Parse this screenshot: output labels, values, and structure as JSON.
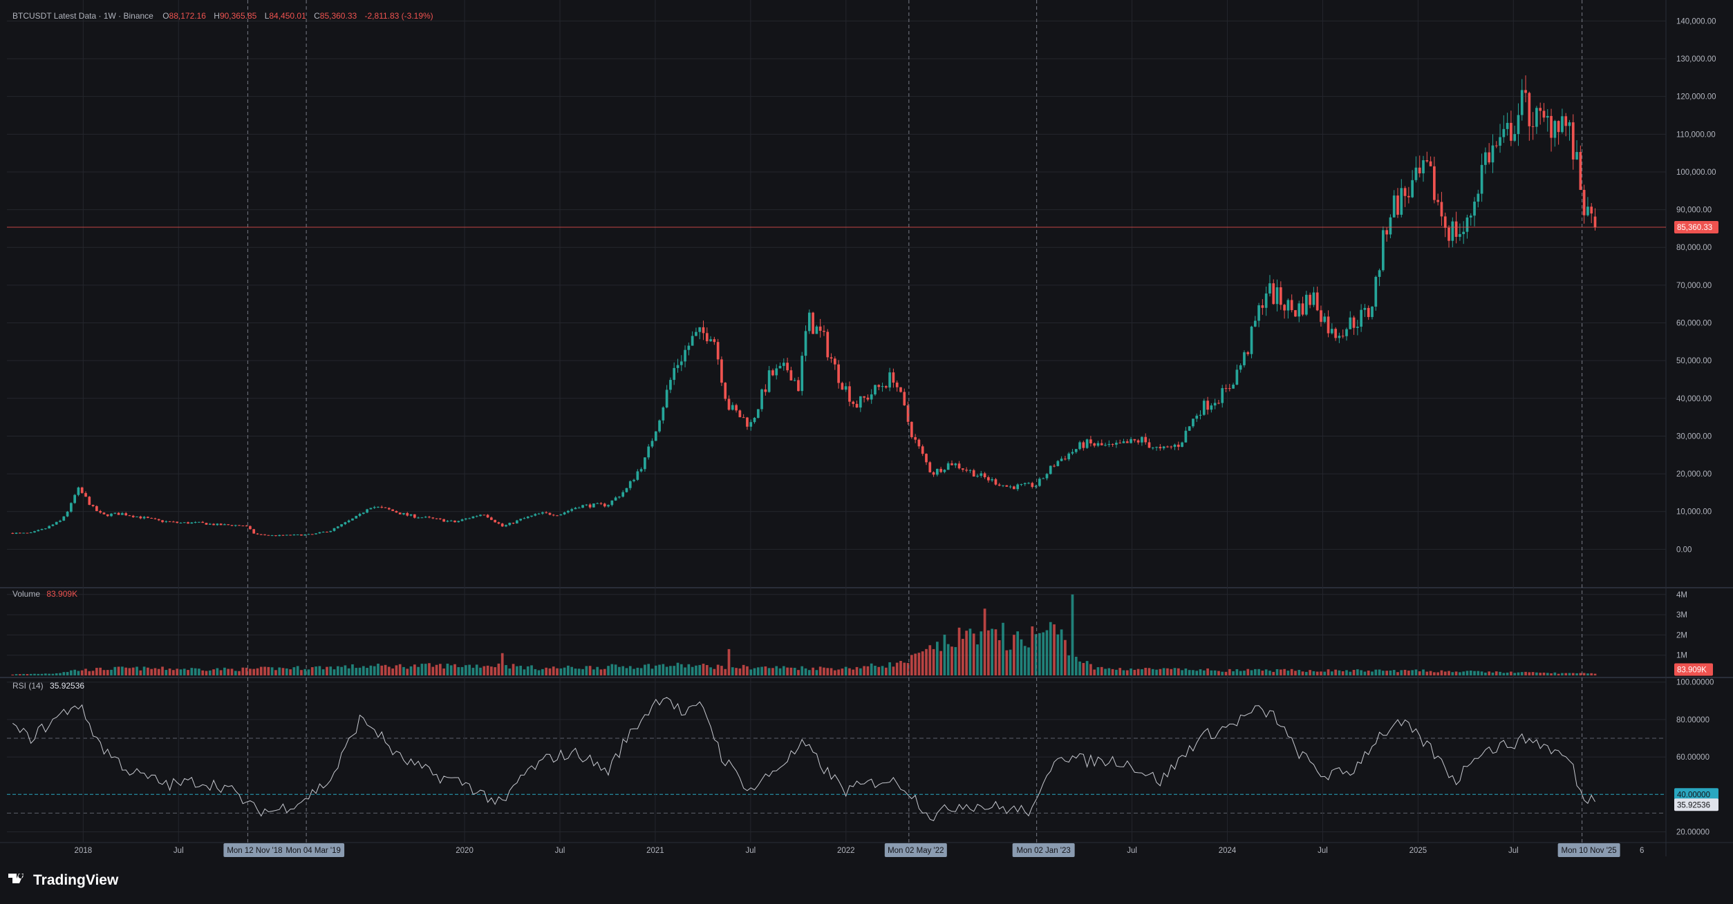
{
  "header": {
    "title": "BTCUSDT Latest Data · 1W · Binance",
    "o_label": "O",
    "o": "88,172.16",
    "h_label": "H",
    "h": "90,365.85",
    "l_label": "L",
    "l": "84,450.01",
    "c_label": "C",
    "c": "85,360.33",
    "change": "-2,811.83 (-3.19%)"
  },
  "volume_legend": {
    "label": "Volume",
    "value": "83.909K"
  },
  "rsi_legend": {
    "label": "RSI (14)",
    "value": "35.92536"
  },
  "brand": {
    "name": "TradingView",
    "icon": "tradingview-logo-icon"
  },
  "colors": {
    "background": "#131418",
    "grid": "#24262d",
    "up": "#26a69a",
    "down": "#ef5350",
    "axis_text": "#b2b5be",
    "rsi_line": "#c7c9d0",
    "rsi_mark": "#2aa7c0",
    "tag_bg": "#8a9bb0"
  },
  "x_axis": {
    "ticks": [
      {
        "t": 2018.0,
        "label": "2018"
      },
      {
        "t": 2018.5,
        "label": "Jul"
      },
      {
        "t": 2020.0,
        "label": "2020"
      },
      {
        "t": 2020.5,
        "label": "Jul"
      },
      {
        "t": 2021.0,
        "label": "2021"
      },
      {
        "t": 2021.5,
        "label": "Jul"
      },
      {
        "t": 2022.0,
        "label": "2022"
      },
      {
        "t": 2023.5,
        "label": "Jul"
      },
      {
        "t": 2024.0,
        "label": "2024"
      },
      {
        "t": 2024.5,
        "label": "Jul"
      },
      {
        "t": 2025.0,
        "label": "2025"
      },
      {
        "t": 2025.5,
        "label": "Jul"
      }
    ],
    "partial_label": "6"
  },
  "markers": [
    {
      "t": 2018.863,
      "label": "Mon 12 Nov '18"
    },
    {
      "t": 2019.17,
      "label": "Mon 04 Mar '19"
    },
    {
      "t": 2022.33,
      "label": "Mon 02 May '22"
    },
    {
      "t": 2023.0,
      "label": "Mon 02 Jan '23"
    },
    {
      "t": 2025.86,
      "label": "Mon 10 Nov '25"
    }
  ],
  "price_axis": {
    "labels": [
      {
        "v": 140000,
        "label": "140,000.00"
      },
      {
        "v": 130000,
        "label": "130,000.00"
      },
      {
        "v": 120000,
        "label": "120,000.00"
      },
      {
        "v": 110000,
        "label": "110,000.00"
      },
      {
        "v": 100000,
        "label": "100,000.00"
      },
      {
        "v": 90000,
        "label": "90,000.00"
      },
      {
        "v": 80000,
        "label": "80,000.00"
      },
      {
        "v": 70000,
        "label": "70,000.00"
      },
      {
        "v": 60000,
        "label": "60,000.00"
      },
      {
        "v": 50000,
        "label": "50,000.00"
      },
      {
        "v": 40000,
        "label": "40,000.00"
      },
      {
        "v": 30000,
        "label": "30,000.00"
      },
      {
        "v": 20000,
        "label": "20,000.00"
      },
      {
        "v": 10000,
        "label": "10,000.00"
      },
      {
        "v": 0,
        "label": "0.00"
      }
    ],
    "last_price": 85360.33,
    "last_price_label": "85,360.33"
  },
  "volume_axis": {
    "labels": [
      {
        "v": 4000000,
        "label": "4M"
      },
      {
        "v": 3000000,
        "label": "3M"
      },
      {
        "v": 2000000,
        "label": "2M"
      },
      {
        "v": 1000000,
        "label": "1M"
      }
    ],
    "last_label": "83.909K"
  },
  "rsi_axis": {
    "labels": [
      {
        "v": 100,
        "label": "100.00000"
      },
      {
        "v": 80,
        "label": "80.00000"
      },
      {
        "v": 60,
        "label": "60.00000"
      },
      {
        "v": 20,
        "label": "20.00000"
      }
    ],
    "level_label": "40.00000",
    "current_label": "35.92536",
    "upper_band": 70,
    "lower_band": 30,
    "mark_level": 40
  },
  "chart_data": {
    "type": "candlestick",
    "symbol": "BTCUSDT",
    "interval": "1W",
    "y_range": [
      -10000,
      143000
    ],
    "price_path": [
      [
        2017.63,
        4300
      ],
      [
        2017.72,
        4200
      ],
      [
        2017.8,
        5500
      ],
      [
        2017.88,
        7500
      ],
      [
        2017.93,
        11000
      ],
      [
        2017.97,
        16000
      ],
      [
        2018.0,
        14500
      ],
      [
        2018.05,
        11000
      ],
      [
        2018.1,
        9000
      ],
      [
        2018.2,
        9500
      ],
      [
        2018.3,
        8500
      ],
      [
        2018.4,
        7500
      ],
      [
        2018.5,
        7000
      ],
      [
        2018.6,
        7000
      ],
      [
        2018.7,
        6500
      ],
      [
        2018.85,
        6300
      ],
      [
        2018.9,
        4000
      ],
      [
        2019.0,
        3600
      ],
      [
        2019.2,
        3900
      ],
      [
        2019.3,
        5000
      ],
      [
        2019.45,
        9000
      ],
      [
        2019.5,
        11500
      ],
      [
        2019.6,
        10500
      ],
      [
        2019.7,
        9000
      ],
      [
        2019.8,
        8300
      ],
      [
        2019.95,
        7200
      ],
      [
        2020.1,
        9500
      ],
      [
        2020.2,
        6000
      ],
      [
        2020.3,
        8000
      ],
      [
        2020.4,
        9500
      ],
      [
        2020.5,
        9300
      ],
      [
        2020.6,
        11500
      ],
      [
        2020.75,
        11800
      ],
      [
        2020.85,
        16000
      ],
      [
        2020.95,
        24000
      ],
      [
        2021.02,
        35000
      ],
      [
        2021.1,
        48000
      ],
      [
        2021.2,
        56000
      ],
      [
        2021.3,
        58000
      ],
      [
        2021.38,
        38000
      ],
      [
        2021.5,
        33000
      ],
      [
        2021.6,
        46000
      ],
      [
        2021.7,
        48000
      ],
      [
        2021.75,
        43000
      ],
      [
        2021.8,
        61000
      ],
      [
        2021.88,
        56000
      ],
      [
        2021.95,
        47000
      ],
      [
        2022.05,
        38000
      ],
      [
        2022.15,
        42000
      ],
      [
        2022.25,
        46000
      ],
      [
        2022.35,
        30000
      ],
      [
        2022.45,
        20000
      ],
      [
        2022.55,
        23000
      ],
      [
        2022.7,
        19500
      ],
      [
        2022.85,
        16500
      ],
      [
        2023.0,
        17000
      ],
      [
        2023.1,
        23000
      ],
      [
        2023.25,
        28000
      ],
      [
        2023.4,
        27000
      ],
      [
        2023.55,
        29000
      ],
      [
        2023.65,
        26000
      ],
      [
        2023.75,
        28000
      ],
      [
        2023.85,
        37000
      ],
      [
        2024.0,
        42000
      ],
      [
        2024.1,
        52000
      ],
      [
        2024.2,
        69000
      ],
      [
        2024.35,
        63000
      ],
      [
        2024.45,
        67000
      ],
      [
        2024.55,
        57000
      ],
      [
        2024.65,
        60000
      ],
      [
        2024.75,
        63000
      ],
      [
        2024.85,
        90000
      ],
      [
        2024.95,
        95000
      ],
      [
        2025.05,
        100000
      ],
      [
        2025.15,
        85000
      ],
      [
        2025.25,
        84000
      ],
      [
        2025.35,
        104000
      ],
      [
        2025.45,
        108000
      ],
      [
        2025.55,
        118000
      ],
      [
        2025.65,
        112000
      ],
      [
        2025.75,
        115000
      ],
      [
        2025.8,
        109000
      ],
      [
        2025.86,
        94000
      ],
      [
        2025.89,
        87000
      ],
      [
        2025.93,
        85360.33
      ]
    ],
    "volume_path": [
      [
        2017.63,
        50000
      ],
      [
        2017.85,
        100000
      ],
      [
        2017.95,
        250000
      ],
      [
        2018.2,
        350000
      ],
      [
        2018.8,
        300000
      ],
      [
        2019.5,
        450000
      ],
      [
        2020.2,
        500000
      ],
      [
        2020.4,
        350000
      ],
      [
        2021.1,
        500000
      ],
      [
        2021.5,
        400000
      ],
      [
        2022.0,
        350000
      ],
      [
        2022.3,
        600000
      ],
      [
        2022.5,
        1500000
      ],
      [
        2022.7,
        2200000
      ],
      [
        2022.85,
        1500000
      ],
      [
        2022.98,
        2000000
      ],
      [
        2023.1,
        2300000
      ],
      [
        2023.2,
        1000000
      ],
      [
        2023.3,
        350000
      ],
      [
        2024.0,
        250000
      ],
      [
        2025.0,
        230000
      ],
      [
        2025.93,
        84000
      ]
    ],
    "volume_spikes": [
      {
        "t": 2020.2,
        "v": 1100000
      },
      {
        "t": 2021.38,
        "v": 1300000
      },
      {
        "t": 2022.45,
        "v": 1300000
      },
      {
        "t": 2022.73,
        "v": 3300000
      },
      {
        "t": 2022.83,
        "v": 2600000
      },
      {
        "t": 2023.18,
        "v": 4000000
      }
    ],
    "rsi_path": [
      [
        2017.63,
        76
      ],
      [
        2017.72,
        70
      ],
      [
        2017.97,
        89
      ],
      [
        2018.1,
        65
      ],
      [
        2018.25,
        52
      ],
      [
        2018.45,
        45
      ],
      [
        2018.6,
        47
      ],
      [
        2018.75,
        44
      ],
      [
        2018.9,
        32
      ],
      [
        2019.0,
        31
      ],
      [
        2019.15,
        37
      ],
      [
        2019.3,
        48
      ],
      [
        2019.45,
        80
      ],
      [
        2019.52,
        76
      ],
      [
        2019.65,
        60
      ],
      [
        2019.85,
        50
      ],
      [
        2020.0,
        46
      ],
      [
        2020.2,
        34
      ],
      [
        2020.3,
        50
      ],
      [
        2020.45,
        60
      ],
      [
        2020.6,
        62
      ],
      [
        2020.75,
        52
      ],
      [
        2020.85,
        70
      ],
      [
        2020.98,
        87
      ],
      [
        2021.05,
        94
      ],
      [
        2021.15,
        82
      ],
      [
        2021.25,
        88
      ],
      [
        2021.35,
        60
      ],
      [
        2021.5,
        42
      ],
      [
        2021.65,
        55
      ],
      [
        2021.78,
        67
      ],
      [
        2021.9,
        52
      ],
      [
        2022.0,
        42
      ],
      [
        2022.2,
        48
      ],
      [
        2022.3,
        45
      ],
      [
        2022.45,
        28
      ],
      [
        2022.6,
        35
      ],
      [
        2022.8,
        33
      ],
      [
        2022.95,
        31
      ],
      [
        2023.0,
        34
      ],
      [
        2023.1,
        62
      ],
      [
        2023.25,
        58
      ],
      [
        2023.45,
        58
      ],
      [
        2023.65,
        47
      ],
      [
        2023.85,
        70
      ],
      [
        2024.0,
        76
      ],
      [
        2024.15,
        85
      ],
      [
        2024.25,
        82
      ],
      [
        2024.35,
        65
      ],
      [
        2024.5,
        50
      ],
      [
        2024.65,
        52
      ],
      [
        2024.8,
        72
      ],
      [
        2024.92,
        78
      ],
      [
        2025.05,
        66
      ],
      [
        2025.2,
        47
      ],
      [
        2025.3,
        62
      ],
      [
        2025.45,
        66
      ],
      [
        2025.58,
        70
      ],
      [
        2025.7,
        64
      ],
      [
        2025.8,
        58
      ],
      [
        2025.86,
        38
      ],
      [
        2025.9,
        38.5
      ],
      [
        2025.93,
        35.93
      ]
    ]
  }
}
